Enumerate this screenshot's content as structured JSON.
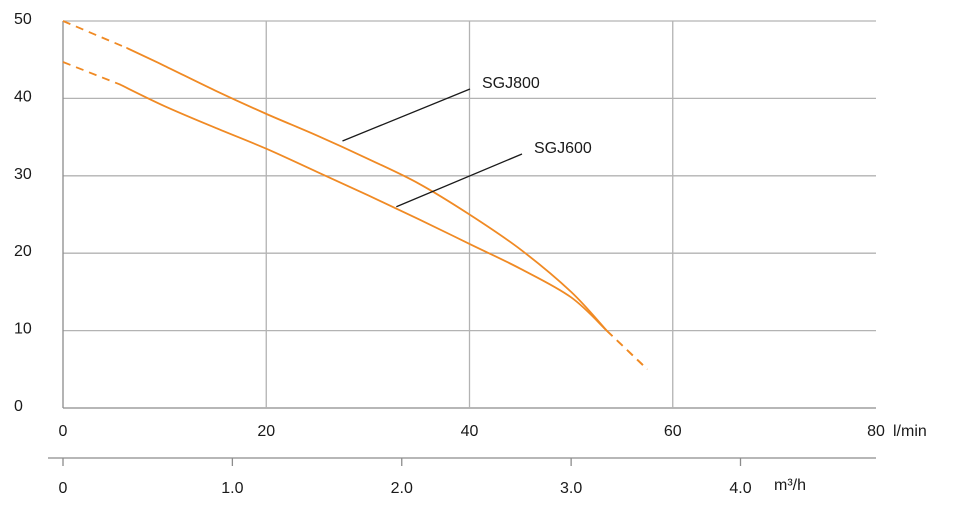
{
  "chart_data": {
    "type": "line",
    "x_unit": "l/min",
    "secondary_x_unit": "m³/h",
    "xlim": [
      0,
      80
    ],
    "ylim": [
      0,
      50
    ],
    "x_ticks": [
      "0",
      "20",
      "40",
      "60",
      "80"
    ],
    "y_ticks": [
      "0",
      "10",
      "20",
      "30",
      "40",
      "50"
    ],
    "secondary_x_ticks": [
      "0",
      "1.0",
      "2.0",
      "3.0",
      "4.0"
    ],
    "grid": true,
    "line_color": "#f08a24",
    "series": [
      {
        "name": "SGJ800",
        "label_anchor": {
          "x": 27.5,
          "y": 34.5
        },
        "dashed_start": [
          [
            0,
            50
          ],
          [
            6.3,
            46.5
          ]
        ],
        "solid": [
          [
            6.3,
            46.5
          ],
          [
            10,
            44.2
          ],
          [
            15,
            41
          ],
          [
            20,
            38
          ],
          [
            25,
            35.2
          ],
          [
            30,
            32.2
          ],
          [
            35,
            29
          ],
          [
            40,
            25
          ],
          [
            45,
            20.5
          ],
          [
            50,
            15
          ],
          [
            53.5,
            10
          ]
        ],
        "dashed_end": [
          [
            53.5,
            10
          ],
          [
            57.5,
            5
          ]
        ]
      },
      {
        "name": "SGJ600",
        "label_anchor": {
          "x": 32.8,
          "y": 26
        },
        "dashed_start": [
          [
            0,
            44.7
          ],
          [
            5.6,
            41.8
          ]
        ],
        "solid": [
          [
            5.6,
            41.8
          ],
          [
            10,
            39
          ],
          [
            15,
            36.2
          ],
          [
            20,
            33.5
          ],
          [
            25,
            30.5
          ],
          [
            30,
            27.5
          ],
          [
            35,
            24.4
          ],
          [
            40,
            21.2
          ],
          [
            45,
            18
          ],
          [
            50,
            14.3
          ],
          [
            53.5,
            10
          ]
        ],
        "dashed_end": [
          [
            53.5,
            10
          ],
          [
            57.5,
            5
          ]
        ]
      }
    ]
  }
}
